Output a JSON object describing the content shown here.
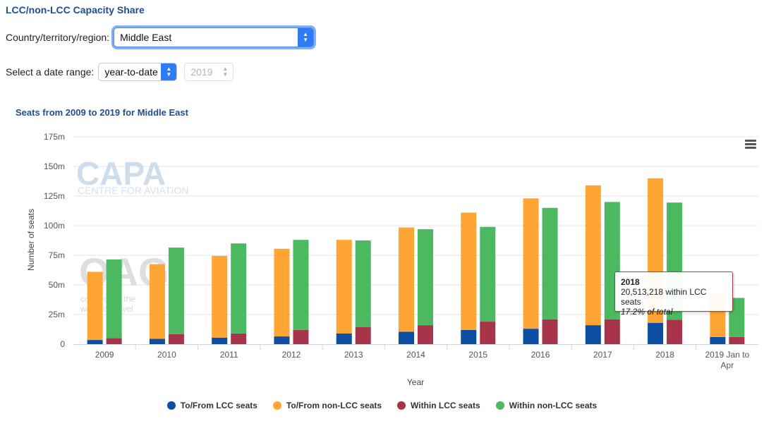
{
  "page": {
    "title": "LCC/non-LCC Capacity Share",
    "country_label": "Country/territory/region:",
    "country_value": "Middle East",
    "date_label": "Select a date range:",
    "date_range_value": "year-to-date",
    "year_value": "2019"
  },
  "watermarks": {
    "capa": "CAPA",
    "capa_sub": "CENTRE FOR AVIATION",
    "oag": "OAG",
    "oag_sub_1": "connecting the",
    "oag_sub_2": "world of travel"
  },
  "tooltip": {
    "year": "2018",
    "line1": "20,513,218 within LCC seats",
    "line2": "17.2% of total"
  },
  "colors": {
    "to_from_lcc": "#0b4ea2",
    "to_from_non_lcc": "#ffa533",
    "within_lcc": "#a8344a",
    "within_non_lcc": "#4cb960",
    "title": "#1d4f91"
  },
  "chart_data": {
    "type": "bar",
    "stacked": true,
    "title": "Seats from 2009 to 2019 for Middle East",
    "xlabel": "Year",
    "ylabel": "Number of seats",
    "ylim": [
      0,
      175
    ],
    "yticks": [
      "0",
      "25m",
      "50m",
      "75m",
      "100m",
      "125m",
      "150m",
      "175m"
    ],
    "ytick_values": [
      0,
      25,
      50,
      75,
      100,
      125,
      150,
      175
    ],
    "categories": [
      "2009",
      "2010",
      "2011",
      "2012",
      "2013",
      "2014",
      "2015",
      "2016",
      "2017",
      "2018",
      "2019 Jan to Apr"
    ],
    "category_lines": [
      [
        "2009"
      ],
      [
        "2010"
      ],
      [
        "2011"
      ],
      [
        "2012"
      ],
      [
        "2013"
      ],
      [
        "2014"
      ],
      [
        "2015"
      ],
      [
        "2016"
      ],
      [
        "2017"
      ],
      [
        "2018"
      ],
      [
        "2019 Jan to",
        "Apr"
      ]
    ],
    "stacks": [
      {
        "name": "To/From",
        "series": [
          {
            "name": "To/From LCC seats",
            "color": "#0b4ea2",
            "values": [
              3.5,
              4.5,
              5.5,
              6.5,
              9,
              10.5,
              12,
              13,
              16,
              18,
              6
            ]
          },
          {
            "name": "To/From non-LCC seats",
            "color": "#ffa533",
            "values": [
              57.5,
              63,
              69,
              74,
              79,
              88,
              99,
              110,
              118,
              122,
              37
            ]
          }
        ]
      },
      {
        "name": "Within",
        "series": [
          {
            "name": "Within LCC seats",
            "color": "#a8344a",
            "values": [
              5,
              8.5,
              9,
              12,
              14.5,
              16,
              19,
              21,
              21,
              20.5,
              6
            ]
          },
          {
            "name": "Within non-LCC seats",
            "color": "#4cb960",
            "values": [
              66.5,
              73,
              76,
              76,
              73,
              81,
              80,
              94,
              99,
              99,
              33
            ]
          }
        ]
      }
    ],
    "legend": [
      "To/From LCC seats",
      "To/From non-LCC seats",
      "Within LCC seats",
      "Within non-LCC seats"
    ],
    "legend_position": "bottom",
    "grid": true
  }
}
